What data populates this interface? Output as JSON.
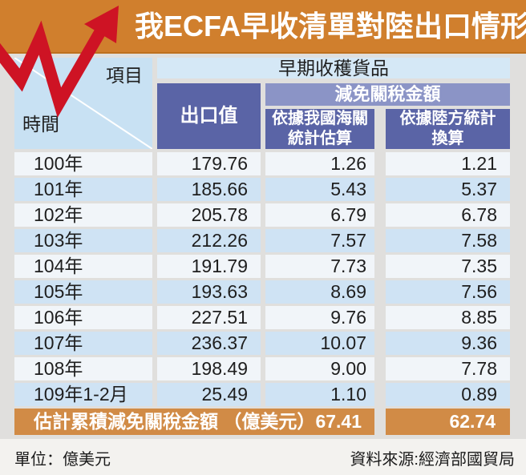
{
  "title": "我ECFA早收清單對陸出口情形",
  "colors": {
    "title_bar": "#d07f2d",
    "arrow_red": "#ce1324",
    "header_dark_blue": "#5a64a6",
    "header_mid_blue": "#8b94c6",
    "header_light_blue": "#d5e8f6",
    "corner_cell_blue": "#c8e1f3",
    "row_light": "#f1f5f9",
    "row_blue": "#cfe3f4",
    "summary_orange": "#d18b46"
  },
  "table": {
    "corner": {
      "top_right": "項目",
      "bottom_left": "時間"
    },
    "col_group": "早期收穫貨品",
    "columns": {
      "export": "出口值",
      "reduction_group": "減免關稅金額",
      "sub1_line1": "依據我國海關",
      "sub1_line2": "統計估算",
      "sub2_line1": "依據陸方統計",
      "sub2_line2": "換算"
    },
    "rows": [
      {
        "year": "100年",
        "export": "179.76",
        "customs": "1.26",
        "china": "1.21"
      },
      {
        "year": "101年",
        "export": "185.66",
        "customs": "5.43",
        "china": "5.37"
      },
      {
        "year": "102年",
        "export": "205.78",
        "customs": "6.79",
        "china": "6.78"
      },
      {
        "year": "103年",
        "export": "212.26",
        "customs": "7.57",
        "china": "7.58"
      },
      {
        "year": "104年",
        "export": "191.79",
        "customs": "7.73",
        "china": "7.35"
      },
      {
        "year": "105年",
        "export": "193.63",
        "customs": "8.69",
        "china": "7.56"
      },
      {
        "year": "106年",
        "export": "227.51",
        "customs": "9.76",
        "china": "8.85"
      },
      {
        "year": "107年",
        "export": "236.37",
        "customs": "10.07",
        "china": "9.36"
      },
      {
        "year": "108年",
        "export": "198.49",
        "customs": "9.00",
        "china": "7.78"
      },
      {
        "year": "109年1-2月",
        "export": "25.49",
        "customs": "1.10",
        "china": "0.89"
      }
    ],
    "summary": {
      "label": "估計累積減免關稅金額 （億美元）",
      "customs_total": "67.41",
      "china_total": "62.74"
    }
  },
  "footer": {
    "unit": "單位：億美元",
    "source": "資料來源:經濟部國貿局"
  },
  "chart_data": {
    "type": "table",
    "title": "我ECFA早收清單對陸出口情形",
    "unit": "億美元",
    "columns": [
      "時間",
      "出口值",
      "減免關稅金額-依據我國海關統計估算",
      "減免關稅金額-依據陸方統計換算"
    ],
    "rows": [
      [
        "100年",
        179.76,
        1.26,
        1.21
      ],
      [
        "101年",
        185.66,
        5.43,
        5.37
      ],
      [
        "102年",
        205.78,
        6.79,
        6.78
      ],
      [
        "103年",
        212.26,
        7.57,
        7.58
      ],
      [
        "104年",
        191.79,
        7.73,
        7.35
      ],
      [
        "105年",
        193.63,
        8.69,
        7.56
      ],
      [
        "106年",
        227.51,
        9.76,
        8.85
      ],
      [
        "107年",
        236.37,
        10.07,
        9.36
      ],
      [
        "108年",
        198.49,
        9.0,
        7.78
      ],
      [
        "109年1-2月",
        25.49,
        1.1,
        0.89
      ]
    ],
    "totals": {
      "label": "估計累積減免關稅金額（億美元）",
      "customs_total": 67.41,
      "china_total": 62.74
    },
    "source": "經濟部國貿局"
  }
}
